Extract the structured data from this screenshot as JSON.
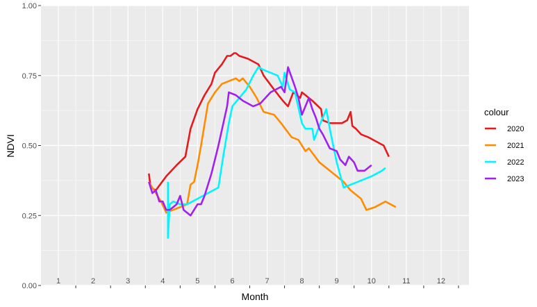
{
  "chart_data": {
    "type": "line",
    "title": "",
    "xlabel": "Month",
    "ylabel": "NDVI",
    "xlim": [
      0.5,
      12.8
    ],
    "ylim": [
      0.0,
      1.0
    ],
    "x_ticks": [
      "1",
      "2",
      "3",
      "4",
      "5",
      "6",
      "7",
      "8",
      "9",
      "10",
      "11",
      "12"
    ],
    "y_ticks": [
      "0.00",
      "0.25",
      "0.50",
      "0.75",
      "1.00"
    ],
    "y_tick_values": [
      0.0,
      0.25,
      0.5,
      0.75,
      1.0
    ],
    "grid": true,
    "panel_background": "#ebebeb",
    "legend": {
      "title": "colour",
      "position": "right"
    },
    "series": [
      {
        "name": "2020",
        "color": "#e41a1c",
        "points": [
          [
            3.6,
            0.4
          ],
          [
            3.65,
            0.35
          ],
          [
            3.8,
            0.34
          ],
          [
            4.1,
            0.39
          ],
          [
            4.4,
            0.43
          ],
          [
            4.65,
            0.46
          ],
          [
            4.8,
            0.56
          ],
          [
            5.0,
            0.63
          ],
          [
            5.2,
            0.68
          ],
          [
            5.4,
            0.72
          ],
          [
            5.5,
            0.76
          ],
          [
            5.7,
            0.79
          ],
          [
            5.85,
            0.82
          ],
          [
            5.95,
            0.82
          ],
          [
            6.05,
            0.83
          ],
          [
            6.1,
            0.83
          ],
          [
            6.2,
            0.82
          ],
          [
            6.45,
            0.81
          ],
          [
            6.75,
            0.79
          ],
          [
            6.9,
            0.75
          ],
          [
            7.2,
            0.7
          ],
          [
            7.45,
            0.66
          ],
          [
            7.6,
            0.64
          ],
          [
            7.75,
            0.69
          ],
          [
            7.95,
            0.67
          ],
          [
            8.0,
            0.69
          ],
          [
            8.3,
            0.66
          ],
          [
            8.55,
            0.63
          ],
          [
            8.6,
            0.59
          ],
          [
            8.8,
            0.58
          ],
          [
            9.0,
            0.58
          ],
          [
            9.15,
            0.58
          ],
          [
            9.3,
            0.59
          ],
          [
            9.4,
            0.62
          ],
          [
            9.45,
            0.57
          ],
          [
            9.55,
            0.56
          ],
          [
            9.7,
            0.54
          ],
          [
            9.9,
            0.53
          ],
          [
            10.2,
            0.51
          ],
          [
            10.35,
            0.5
          ],
          [
            10.5,
            0.46
          ]
        ]
      },
      {
        "name": "2021",
        "color": "#ff8c00",
        "points": [
          [
            3.6,
            0.37
          ],
          [
            3.75,
            0.34
          ],
          [
            3.95,
            0.3
          ],
          [
            4.1,
            0.26
          ],
          [
            4.3,
            0.27
          ],
          [
            4.5,
            0.28
          ],
          [
            4.7,
            0.29
          ],
          [
            4.8,
            0.36
          ],
          [
            4.9,
            0.37
          ],
          [
            5.0,
            0.43
          ],
          [
            5.1,
            0.5
          ],
          [
            5.3,
            0.65
          ],
          [
            5.5,
            0.69
          ],
          [
            5.7,
            0.72
          ],
          [
            5.9,
            0.73
          ],
          [
            6.1,
            0.74
          ],
          [
            6.2,
            0.73
          ],
          [
            6.3,
            0.74
          ],
          [
            6.5,
            0.71
          ],
          [
            6.7,
            0.67
          ],
          [
            6.9,
            0.62
          ],
          [
            7.2,
            0.61
          ],
          [
            7.4,
            0.58
          ],
          [
            7.7,
            0.53
          ],
          [
            7.9,
            0.52
          ],
          [
            8.1,
            0.48
          ],
          [
            8.2,
            0.49
          ],
          [
            8.5,
            0.44
          ],
          [
            8.7,
            0.42
          ],
          [
            9.0,
            0.39
          ],
          [
            9.2,
            0.37
          ],
          [
            9.4,
            0.34
          ],
          [
            9.7,
            0.31
          ],
          [
            9.85,
            0.27
          ],
          [
            10.1,
            0.28
          ],
          [
            10.4,
            0.3
          ],
          [
            10.7,
            0.28
          ]
        ]
      },
      {
        "name": "2022",
        "color": "#00f5ff",
        "points": [
          [
            4.15,
            0.37
          ],
          [
            4.15,
            0.17
          ],
          [
            4.2,
            0.29
          ],
          [
            4.3,
            0.3
          ],
          [
            4.5,
            0.29
          ],
          [
            4.7,
            0.29
          ],
          [
            5.0,
            0.31
          ],
          [
            5.3,
            0.33
          ],
          [
            5.6,
            0.35
          ],
          [
            5.75,
            0.47
          ],
          [
            5.9,
            0.58
          ],
          [
            6.0,
            0.64
          ],
          [
            6.2,
            0.67
          ],
          [
            6.4,
            0.7
          ],
          [
            6.6,
            0.75
          ],
          [
            6.75,
            0.78
          ],
          [
            6.9,
            0.77
          ],
          [
            7.1,
            0.76
          ],
          [
            7.3,
            0.75
          ],
          [
            7.45,
            0.71
          ],
          [
            7.5,
            0.76
          ],
          [
            7.65,
            0.7
          ],
          [
            7.8,
            0.69
          ],
          [
            8.0,
            0.58
          ],
          [
            8.1,
            0.56
          ],
          [
            8.3,
            0.56
          ],
          [
            8.35,
            0.52
          ],
          [
            8.5,
            0.57
          ],
          [
            8.7,
            0.63
          ],
          [
            8.8,
            0.56
          ],
          [
            9.0,
            0.44
          ],
          [
            9.2,
            0.35
          ],
          [
            9.6,
            0.37
          ],
          [
            10.0,
            0.39
          ],
          [
            10.3,
            0.41
          ],
          [
            10.4,
            0.42
          ]
        ]
      },
      {
        "name": "2023",
        "color": "#a020f0",
        "points": [
          [
            3.6,
            0.37
          ],
          [
            3.7,
            0.33
          ],
          [
            3.8,
            0.34
          ],
          [
            3.9,
            0.3
          ],
          [
            4.0,
            0.3
          ],
          [
            4.1,
            0.27
          ],
          [
            4.2,
            0.27
          ],
          [
            4.4,
            0.29
          ],
          [
            4.5,
            0.32
          ],
          [
            4.6,
            0.27
          ],
          [
            4.8,
            0.25
          ],
          [
            5.0,
            0.29
          ],
          [
            5.1,
            0.29
          ],
          [
            5.2,
            0.32
          ],
          [
            5.4,
            0.4
          ],
          [
            5.6,
            0.5
          ],
          [
            5.85,
            0.64
          ],
          [
            5.9,
            0.69
          ],
          [
            6.1,
            0.68
          ],
          [
            6.3,
            0.66
          ],
          [
            6.6,
            0.64
          ],
          [
            6.8,
            0.65
          ],
          [
            7.1,
            0.69
          ],
          [
            7.4,
            0.71
          ],
          [
            7.5,
            0.69
          ],
          [
            7.6,
            0.78
          ],
          [
            7.8,
            0.71
          ],
          [
            7.9,
            0.67
          ],
          [
            8.0,
            0.61
          ],
          [
            8.2,
            0.67
          ],
          [
            8.3,
            0.63
          ],
          [
            8.4,
            0.6
          ],
          [
            8.5,
            0.56
          ],
          [
            8.6,
            0.54
          ],
          [
            8.8,
            0.49
          ],
          [
            9.0,
            0.48
          ],
          [
            9.1,
            0.45
          ],
          [
            9.25,
            0.43
          ],
          [
            9.35,
            0.46
          ],
          [
            9.5,
            0.44
          ],
          [
            9.6,
            0.41
          ],
          [
            9.8,
            0.41
          ],
          [
            10.0,
            0.43
          ]
        ]
      }
    ]
  }
}
